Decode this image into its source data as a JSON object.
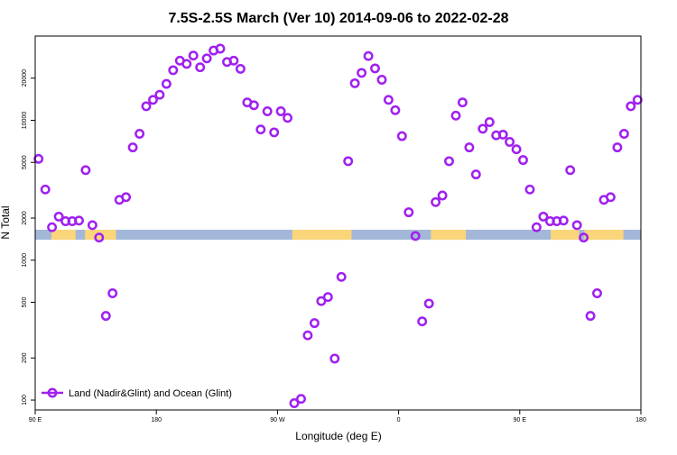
{
  "chart_data": {
    "type": "scatter",
    "title": "7.5S-2.5S March (Ver 10)   2014-09-06 to 2022-02-28",
    "xlabel": "Longitude (deg E)",
    "ylabel": "N Total",
    "y_scale": "log",
    "xlim": [
      90,
      540
    ],
    "ylim": [
      85,
      40000
    ],
    "x_ticks": [
      {
        "value": 90,
        "label": "90 E"
      },
      {
        "value": 180,
        "label": "180"
      },
      {
        "value": 270,
        "label": "90 W"
      },
      {
        "value": 360,
        "label": "0"
      },
      {
        "value": 450,
        "label": "90 E"
      },
      {
        "value": 540,
        "label": "180"
      }
    ],
    "y_ticks": [
      {
        "value": 100,
        "label": "100"
      },
      {
        "value": 200,
        "label": "200"
      },
      {
        "value": 500,
        "label": "500"
      },
      {
        "value": 1000,
        "label": "1000"
      },
      {
        "value": 2000,
        "label": "2000"
      },
      {
        "value": 5000,
        "label": "5000"
      },
      {
        "value": 10000,
        "label": "10000"
      },
      {
        "value": 20000,
        "label": "20000"
      }
    ],
    "background_band": {
      "y_range": [
        1400,
        1650
      ],
      "base_color": "#a3b8d8",
      "land_color": "#fad57a",
      "land_segments": [
        [
          102,
          120
        ],
        [
          127,
          150
        ],
        [
          281,
          325
        ],
        [
          384,
          410
        ],
        [
          473,
          494
        ],
        [
          498,
          527
        ]
      ]
    },
    "series": [
      {
        "name": "Land (Nadir&Glint) and Ocean (Glint)",
        "color": "#a020f0",
        "x": [
          92.5,
          97.5,
          102.5,
          107.5,
          112.5,
          117.5,
          122.5,
          127.5,
          132.5,
          137.5,
          142.5,
          147.5,
          152.5,
          157.5,
          162.5,
          167.5,
          172.5,
          177.5,
          182.5,
          187.5,
          192.5,
          197.5,
          202.5,
          207.5,
          212.5,
          217.5,
          222.5,
          227.5,
          232.5,
          237.5,
          242.5,
          247.5,
          252.5,
          257.5,
          262.5,
          267.5,
          272.5,
          277.5,
          282.5,
          287.5,
          292.5,
          297.5,
          302.5,
          307.5,
          312.5,
          317.5,
          322.5,
          327.5,
          332.5,
          337.5,
          342.5,
          347.5,
          352.5,
          357.5,
          362.5,
          367.5,
          372.5,
          377.5,
          382.5,
          387.5,
          392.5,
          397.5,
          402.5,
          407.5,
          412.5,
          417.5,
          422.5,
          427.5,
          432.5,
          437.5,
          442.5,
          447.5,
          452.5,
          457.5,
          462.5,
          467.5,
          472.5,
          477.5,
          482.5,
          487.5,
          492.5,
          497.5,
          502.5,
          507.5,
          512.5,
          517.5,
          522.5,
          527.5,
          532.5,
          537.5
        ],
        "values": [
          5300,
          3200,
          1720,
          2050,
          1900,
          1900,
          1920,
          4400,
          1780,
          1450,
          400,
          580,
          2700,
          2820,
          6400,
          8000,
          12600,
          14000,
          15200,
          18200,
          22800,
          26700,
          25300,
          29000,
          23900,
          27700,
          31500,
          32500,
          26100,
          26700,
          23300,
          13400,
          12800,
          8600,
          11600,
          8200,
          11600,
          10400,
          95,
          102,
          290,
          355,
          510,
          545,
          198,
          760,
          5100,
          18400,
          21800,
          28800,
          23500,
          19500,
          14000,
          11800,
          7700,
          2200,
          1490,
          365,
          490,
          2600,
          2900,
          5100,
          10800,
          13400,
          6400,
          4100,
          8700,
          9700,
          7800,
          7900,
          7000,
          6200,
          5200,
          3200,
          1720,
          2050,
          1900,
          1900,
          1920,
          4400,
          1780,
          1450,
          400,
          580,
          2700,
          2820,
          6400,
          8000,
          12600,
          14000
        ]
      }
    ],
    "legend": {
      "position": "bottom-left",
      "label": "Land (Nadir&Glint) and Ocean (Glint)"
    },
    "grid": false
  }
}
